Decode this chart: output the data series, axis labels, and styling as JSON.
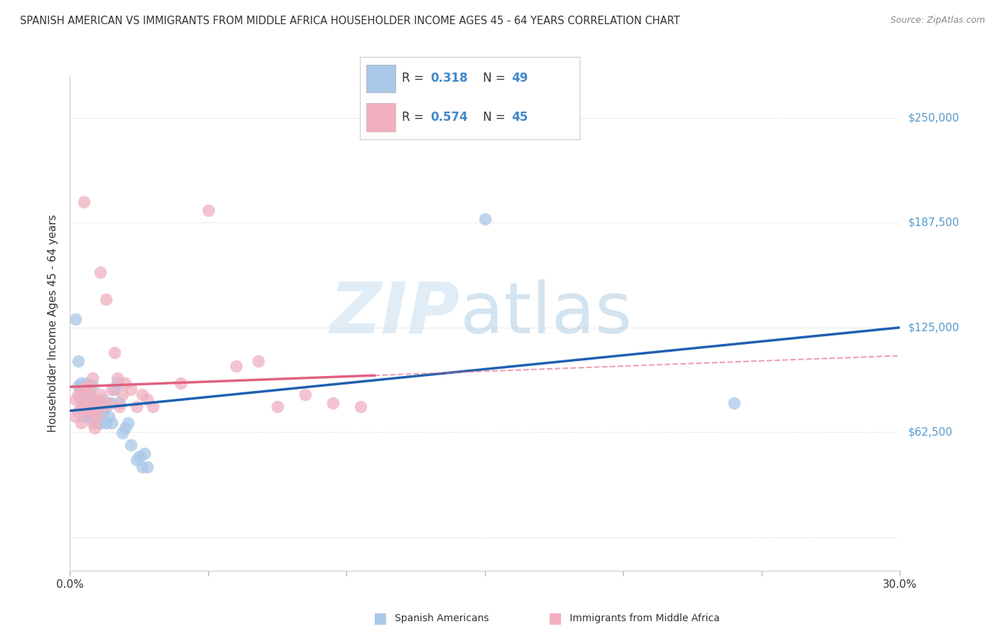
{
  "title": "SPANISH AMERICAN VS IMMIGRANTS FROM MIDDLE AFRICA HOUSEHOLDER INCOME AGES 45 - 64 YEARS CORRELATION CHART",
  "source": "Source: ZipAtlas.com",
  "ylabel": "Householder Income Ages 45 - 64 years",
  "xlim": [
    0.0,
    0.3
  ],
  "ylim": [
    -20000,
    275000
  ],
  "ytick_values": [
    0,
    62500,
    125000,
    187500,
    250000
  ],
  "ytick_labels": [
    "",
    "$62,500",
    "$125,000",
    "$187,500",
    "$250,000"
  ],
  "xtick_positions": [
    0.0,
    0.05,
    0.1,
    0.15,
    0.2,
    0.25,
    0.3
  ],
  "xtick_labels": [
    "0.0%",
    "",
    "",
    "",
    "",
    "",
    "30.0%"
  ],
  "bg_color": "#ffffff",
  "grid_color": "#d8d8d8",
  "blue_R": "0.318",
  "blue_N": "49",
  "pink_R": "0.574",
  "pink_N": "45",
  "blue_color": "#aac8e8",
  "pink_color": "#f0b0c0",
  "blue_line_color": "#2060b0",
  "pink_line_color": "#e06080",
  "blue_scatter_x": [
    0.002,
    0.003,
    0.003,
    0.004,
    0.004,
    0.004,
    0.005,
    0.005,
    0.005,
    0.006,
    0.006,
    0.006,
    0.006,
    0.007,
    0.007,
    0.007,
    0.007,
    0.008,
    0.008,
    0.008,
    0.009,
    0.009,
    0.009,
    0.01,
    0.01,
    0.01,
    0.011,
    0.011,
    0.012,
    0.012,
    0.013,
    0.013,
    0.014,
    0.015,
    0.015,
    0.016,
    0.017,
    0.018,
    0.019,
    0.02,
    0.021,
    0.022,
    0.024,
    0.025,
    0.026,
    0.027,
    0.028,
    0.15,
    0.24
  ],
  "blue_scatter_y": [
    130000,
    90000,
    105000,
    92000,
    82000,
    88000,
    82000,
    78000,
    72000,
    85000,
    78000,
    88000,
    92000,
    80000,
    72000,
    85000,
    78000,
    90000,
    78000,
    82000,
    70000,
    80000,
    72000,
    68000,
    78000,
    72000,
    80000,
    68000,
    75000,
    82000,
    78000,
    68000,
    72000,
    80000,
    68000,
    88000,
    92000,
    80000,
    62000,
    65000,
    68000,
    55000,
    46000,
    48000,
    42000,
    50000,
    42000,
    190000,
    80000
  ],
  "pink_scatter_x": [
    0.002,
    0.002,
    0.003,
    0.003,
    0.004,
    0.004,
    0.004,
    0.005,
    0.005,
    0.006,
    0.006,
    0.006,
    0.007,
    0.007,
    0.008,
    0.008,
    0.008,
    0.009,
    0.009,
    0.01,
    0.01,
    0.011,
    0.011,
    0.012,
    0.013,
    0.014,
    0.015,
    0.016,
    0.017,
    0.018,
    0.019,
    0.02,
    0.022,
    0.024,
    0.026,
    0.028,
    0.03,
    0.04,
    0.05,
    0.06,
    0.068,
    0.075,
    0.085,
    0.095,
    0.105
  ],
  "pink_scatter_y": [
    72000,
    82000,
    75000,
    85000,
    78000,
    88000,
    68000,
    200000,
    80000,
    75000,
    82000,
    90000,
    88000,
    78000,
    95000,
    68000,
    75000,
    82000,
    65000,
    80000,
    72000,
    158000,
    85000,
    78000,
    142000,
    80000,
    88000,
    110000,
    95000,
    78000,
    85000,
    92000,
    88000,
    78000,
    85000,
    82000,
    78000,
    92000,
    195000,
    102000,
    105000,
    78000,
    85000,
    80000,
    78000
  ]
}
